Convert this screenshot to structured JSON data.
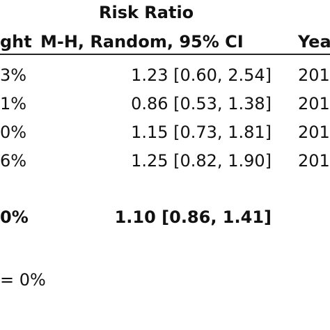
{
  "header": {
    "group_title": "Risk Ratio",
    "col_weight": "ght",
    "col_method": "M-H, Random, 95% CI",
    "col_year": "Yea"
  },
  "rows": [
    {
      "weight": "3%",
      "ci": "1.23 [0.60, 2.54]",
      "year": "201"
    },
    {
      "weight": "1%",
      "ci": "0.86 [0.53, 1.38]",
      "year": "201"
    },
    {
      "weight": "0%",
      "ci": "1.15 [0.73, 1.81]",
      "year": "201"
    },
    {
      "weight": "6%",
      "ci": "1.25 [0.82, 1.90]",
      "year": "201"
    }
  ],
  "total": {
    "weight": "0%",
    "ci": "1.10 [0.86, 1.41]"
  },
  "heterogeneity": "= 0%"
}
